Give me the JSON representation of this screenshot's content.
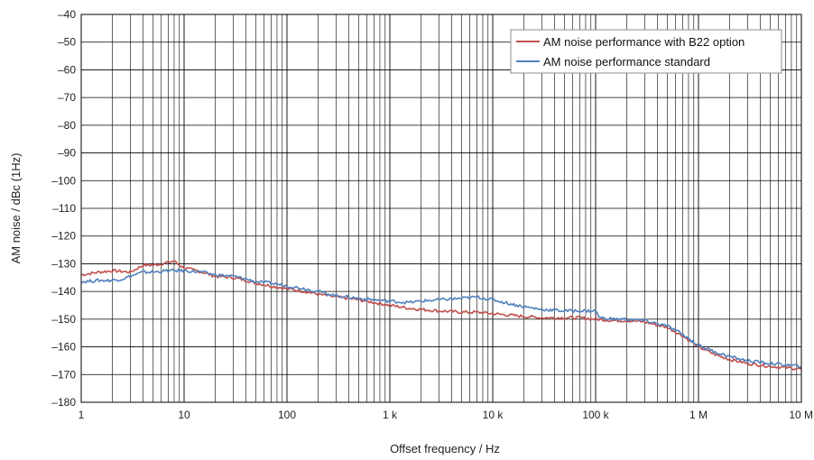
{
  "chart_data": {
    "type": "line",
    "title": "",
    "xlabel": "Offset frequency / Hz",
    "ylabel": "AM noise / dBc (1Hz)",
    "xscale": "log",
    "xlim": [
      1,
      10000000
    ],
    "ylim": [
      -180,
      -40
    ],
    "grid": true,
    "legend": "top-right",
    "x_ticks": [
      {
        "value": 1,
        "label": "1"
      },
      {
        "value": 10,
        "label": "10"
      },
      {
        "value": 100,
        "label": "100"
      },
      {
        "value": 1000,
        "label": "1 k"
      },
      {
        "value": 10000,
        "label": "10 k"
      },
      {
        "value": 100000,
        "label": "100 k"
      },
      {
        "value": 1000000,
        "label": "1 M"
      },
      {
        "value": 10000000,
        "label": "10 M"
      }
    ],
    "y_ticks": [
      {
        "value": -40,
        "label": "–40"
      },
      {
        "value": -50,
        "label": "–50"
      },
      {
        "value": -60,
        "label": "–60"
      },
      {
        "value": -70,
        "label": "–70"
      },
      {
        "value": -80,
        "label": "–80"
      },
      {
        "value": -90,
        "label": "–90"
      },
      {
        "value": -100,
        "label": "–100"
      },
      {
        "value": -110,
        "label": "–110"
      },
      {
        "value": -120,
        "label": "–120"
      },
      {
        "value": -130,
        "label": "–130"
      },
      {
        "value": -140,
        "label": "–140"
      },
      {
        "value": -150,
        "label": "–150"
      },
      {
        "value": -160,
        "label": "–160"
      },
      {
        "value": -170,
        "label": "–170"
      },
      {
        "value": -180,
        "label": "–180"
      }
    ],
    "series": [
      {
        "name": "AM noise performance with B22 option",
        "color": "#c0504d",
        "points": [
          [
            1,
            -134
          ],
          [
            1.5,
            -133
          ],
          [
            2,
            -132.5
          ],
          [
            3,
            -133
          ],
          [
            4,
            -130.5
          ],
          [
            5,
            -130.5
          ],
          [
            6,
            -130
          ],
          [
            7,
            -129.5
          ],
          [
            8,
            -129
          ],
          [
            9,
            -130.5
          ],
          [
            10,
            -131.5
          ],
          [
            15,
            -133
          ],
          [
            20,
            -134.5
          ],
          [
            30,
            -135
          ],
          [
            40,
            -136
          ],
          [
            50,
            -137
          ],
          [
            70,
            -138
          ],
          [
            100,
            -139
          ],
          [
            150,
            -140
          ],
          [
            200,
            -141
          ],
          [
            300,
            -142
          ],
          [
            500,
            -143
          ],
          [
            700,
            -144
          ],
          [
            1000,
            -145
          ],
          [
            1500,
            -146
          ],
          [
            2000,
            -146.5
          ],
          [
            3000,
            -147
          ],
          [
            5000,
            -147.5
          ],
          [
            7000,
            -147.5
          ],
          [
            10000,
            -148
          ],
          [
            20000,
            -149
          ],
          [
            30000,
            -149.5
          ],
          [
            50000,
            -149.5
          ],
          [
            70000,
            -149.5
          ],
          [
            100000,
            -150
          ],
          [
            150000,
            -150.5
          ],
          [
            200000,
            -150.5
          ],
          [
            300000,
            -151
          ],
          [
            500000,
            -153
          ],
          [
            700000,
            -156
          ],
          [
            1000000,
            -160
          ],
          [
            1500000,
            -163
          ],
          [
            2000000,
            -164.5
          ],
          [
            3000000,
            -166
          ],
          [
            5000000,
            -167
          ],
          [
            7000000,
            -167.5
          ],
          [
            10000000,
            -168
          ]
        ]
      },
      {
        "name": "AM noise performance standard",
        "color": "#4f81bd",
        "points": [
          [
            1,
            -136.5
          ],
          [
            1.5,
            -136
          ],
          [
            2,
            -136
          ],
          [
            2.5,
            -135.5
          ],
          [
            3,
            -134.5
          ],
          [
            4,
            -133
          ],
          [
            5,
            -133
          ],
          [
            7,
            -132.5
          ],
          [
            10,
            -132.5
          ],
          [
            15,
            -133
          ],
          [
            20,
            -134
          ],
          [
            30,
            -134.5
          ],
          [
            40,
            -135.5
          ],
          [
            50,
            -136.5
          ],
          [
            70,
            -137
          ],
          [
            100,
            -138
          ],
          [
            150,
            -139
          ],
          [
            200,
            -140
          ],
          [
            300,
            -141.5
          ],
          [
            500,
            -142.5
          ],
          [
            700,
            -143
          ],
          [
            1000,
            -143.5
          ],
          [
            1500,
            -144
          ],
          [
            2000,
            -143.5
          ],
          [
            3000,
            -143
          ],
          [
            5000,
            -142.5
          ],
          [
            7000,
            -142
          ],
          [
            10000,
            -143
          ],
          [
            15000,
            -144.5
          ],
          [
            20000,
            -145.5
          ],
          [
            30000,
            -146.5
          ],
          [
            50000,
            -147
          ],
          [
            70000,
            -147
          ],
          [
            100000,
            -147
          ],
          [
            110000,
            -149.5
          ],
          [
            150000,
            -150
          ],
          [
            200000,
            -150
          ],
          [
            300000,
            -150.5
          ],
          [
            500000,
            -152.5
          ],
          [
            700000,
            -155.5
          ],
          [
            1000000,
            -159.5
          ],
          [
            1500000,
            -162
          ],
          [
            2000000,
            -163.5
          ],
          [
            3000000,
            -165
          ],
          [
            5000000,
            -166
          ],
          [
            7000000,
            -166.5
          ],
          [
            10000000,
            -167
          ]
        ]
      }
    ]
  }
}
